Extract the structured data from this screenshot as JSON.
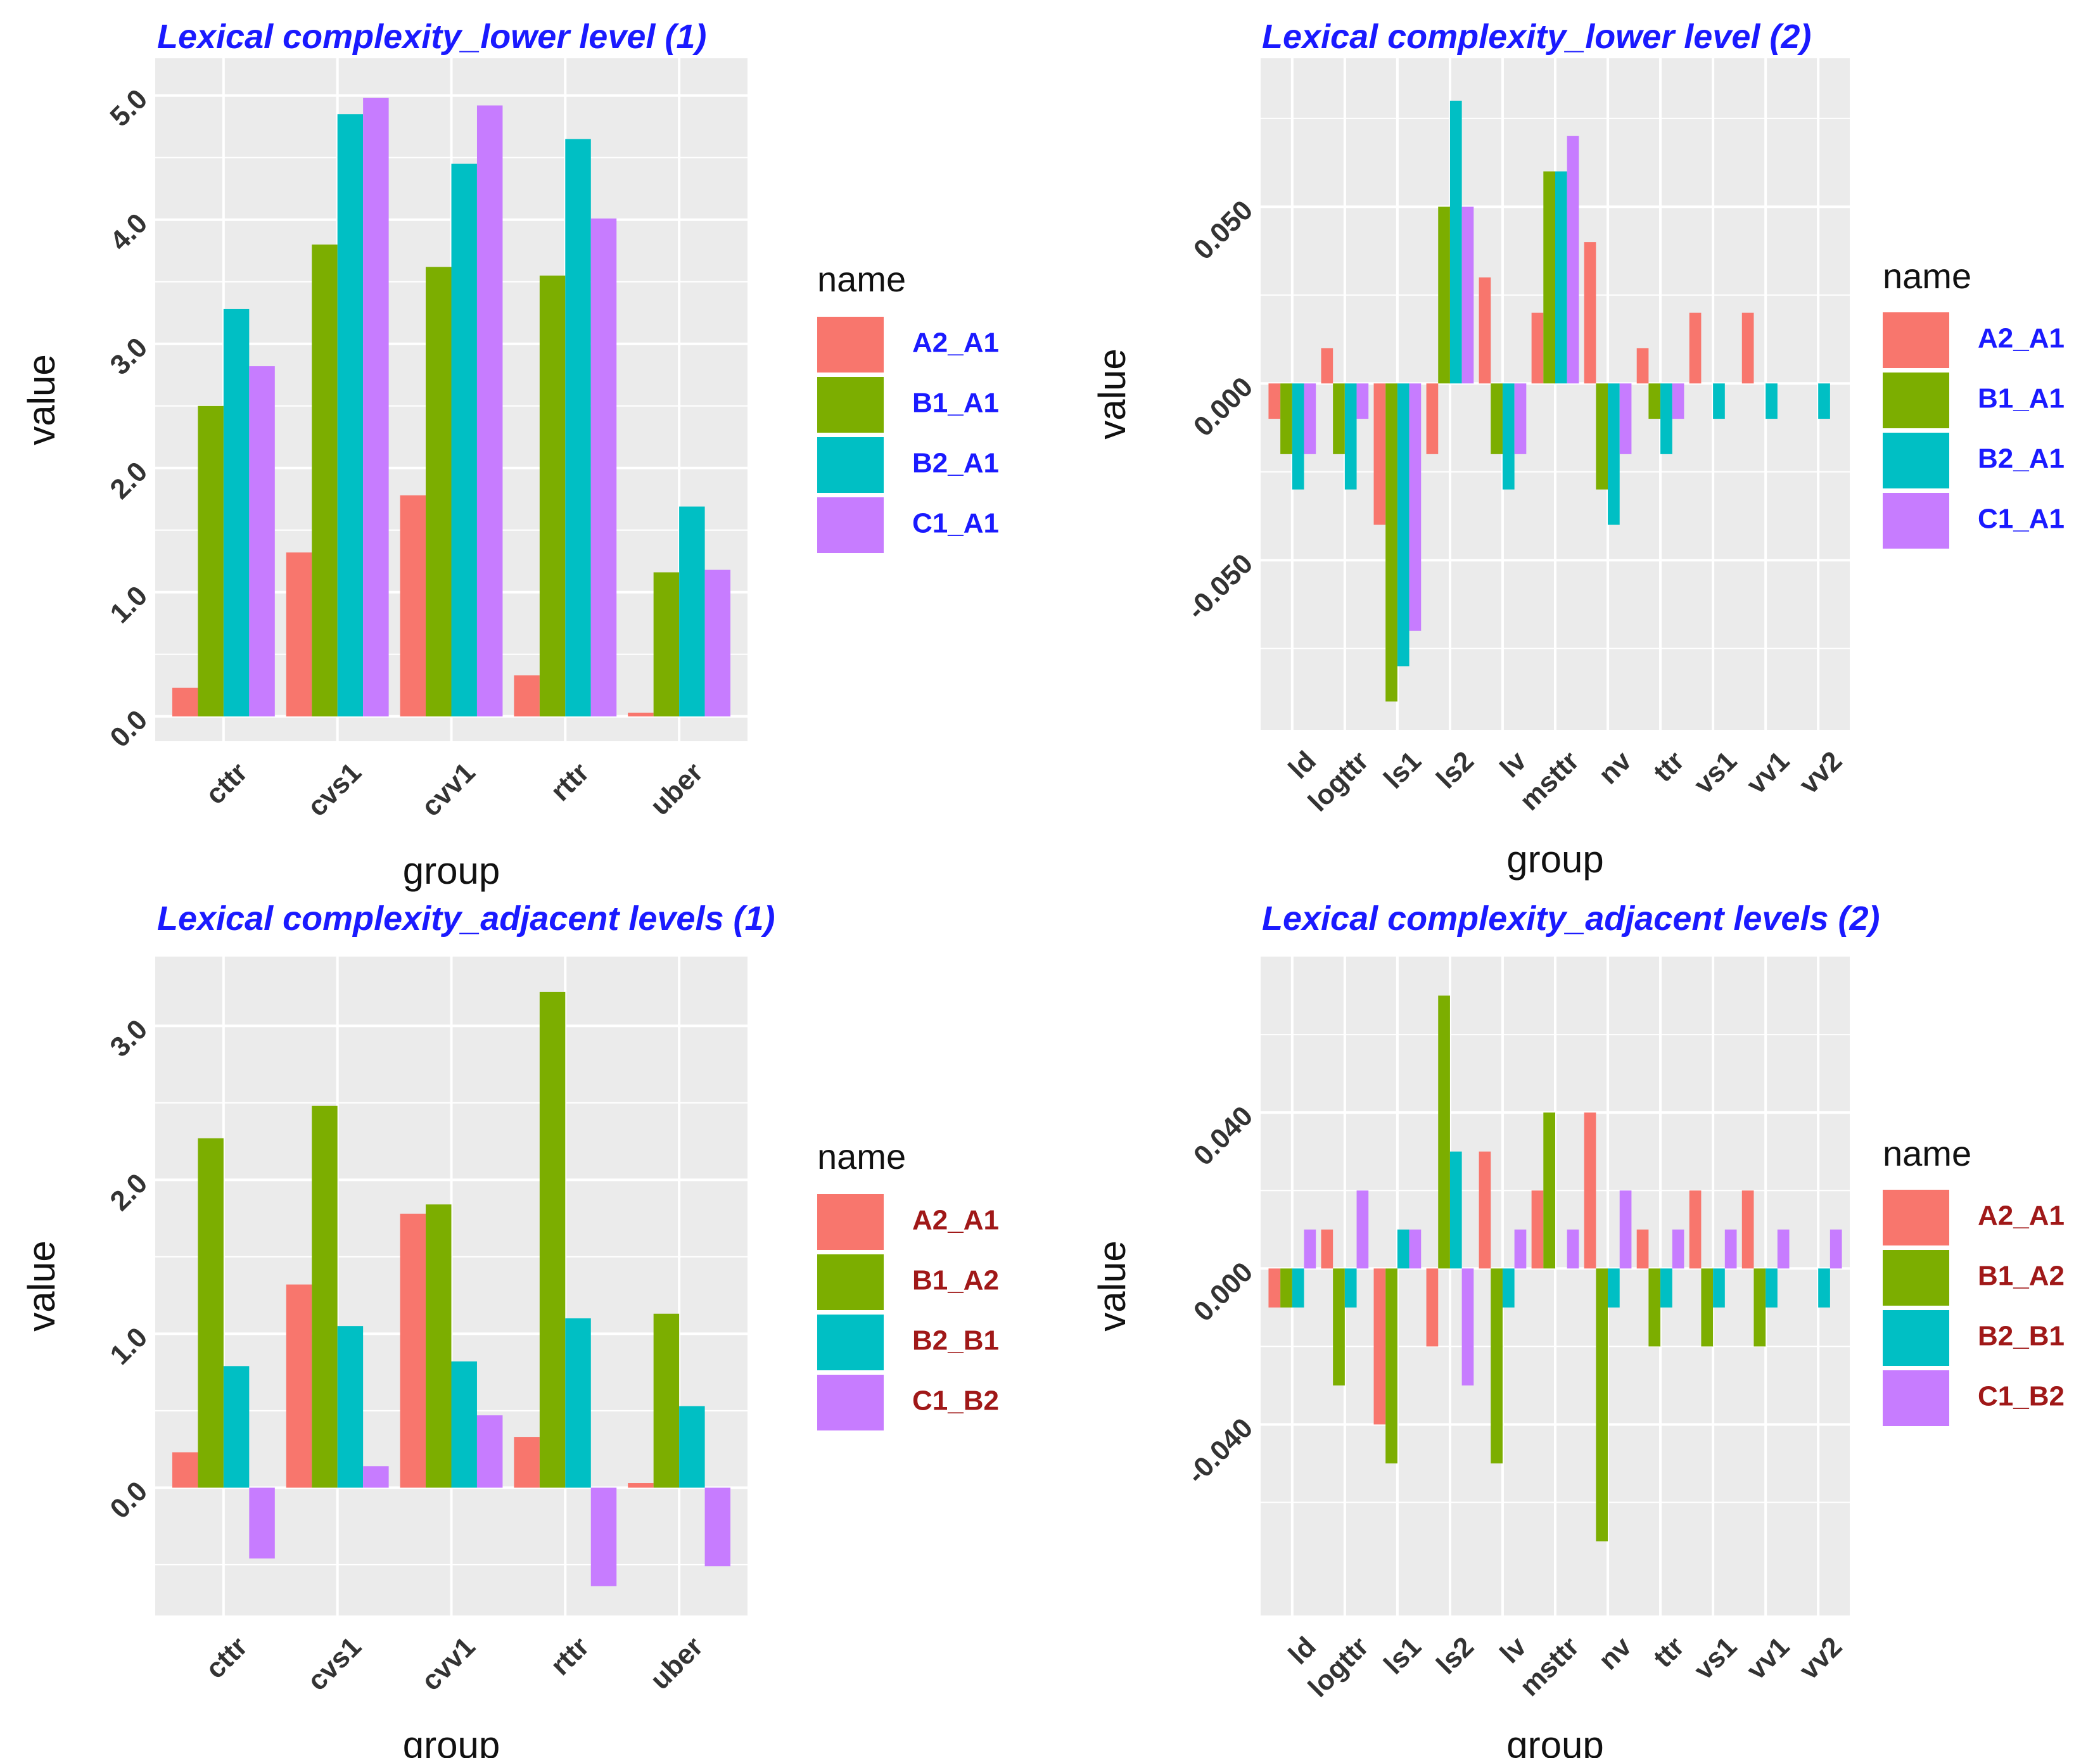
{
  "colors": {
    "A": "#F8766D",
    "B": "#7CAE00",
    "C": "#00BFC4",
    "D": "#C77CFF",
    "panel": "#EBEBEB",
    "grid": "#FFFFFF"
  },
  "chart_data": [
    {
      "type": "bar",
      "title": "Lexical complexity_lower level (1)",
      "xlabel": "group",
      "ylabel": "value",
      "categories": [
        "cttr",
        "cvs1",
        "cvv1",
        "rttr",
        "uber"
      ],
      "ylim": [
        -0.2,
        5.3
      ],
      "yticks": [
        0.0,
        1.0,
        2.0,
        3.0,
        4.0,
        5.0
      ],
      "ytick_labels": [
        "0.0",
        "1.0",
        "2.0",
        "3.0",
        "4.0",
        "5.0"
      ],
      "legend_title": "name",
      "legend_style": "blue",
      "series": [
        {
          "name": "A2_A1",
          "values": [
            0.23,
            1.32,
            1.78,
            0.33,
            0.03
          ]
        },
        {
          "name": "B1_A1",
          "values": [
            2.5,
            3.8,
            3.62,
            3.55,
            1.16
          ]
        },
        {
          "name": "B2_A1",
          "values": [
            3.28,
            4.85,
            4.45,
            4.65,
            1.69
          ]
        },
        {
          "name": "C1_A1",
          "values": [
            2.82,
            4.98,
            4.92,
            4.01,
            1.18
          ]
        }
      ]
    },
    {
      "type": "bar",
      "title": "Lexical complexity_lower level (2)",
      "xlabel": "group",
      "ylabel": "value",
      "categories": [
        "ld",
        "logttr",
        "ls1",
        "ls2",
        "lv",
        "msttr",
        "nv",
        "ttr",
        "vs1",
        "vv1",
        "vv2"
      ],
      "ylim": [
        -0.098,
        0.092
      ],
      "yticks": [
        -0.05,
        0.0,
        0.05
      ],
      "ytick_labels": [
        "-0.050",
        "0.000",
        "0.050"
      ],
      "legend_title": "name",
      "legend_style": "blue",
      "series": [
        {
          "name": "A2_A1",
          "values": [
            -0.01,
            0.01,
            -0.04,
            -0.02,
            0.03,
            0.02,
            0.04,
            0.01,
            0.02,
            0.02,
            0.0
          ]
        },
        {
          "name": "B1_A1",
          "values": [
            -0.02,
            -0.02,
            -0.09,
            0.05,
            -0.02,
            0.06,
            -0.03,
            -0.01,
            0.0,
            0.0,
            0.0
          ]
        },
        {
          "name": "B2_A1",
          "values": [
            -0.03,
            -0.03,
            -0.08,
            0.08,
            -0.03,
            0.06,
            -0.04,
            -0.02,
            -0.01,
            -0.01,
            -0.01
          ]
        },
        {
          "name": "C1_A1",
          "values": [
            -0.02,
            -0.01,
            -0.07,
            0.05,
            -0.02,
            0.07,
            -0.02,
            -0.01,
            0.0,
            0.0,
            0.0
          ]
        }
      ]
    },
    {
      "type": "bar",
      "title": "Lexical complexity_adjacent levels (1)",
      "xlabel": "group",
      "ylabel": "value",
      "categories": [
        "cttr",
        "cvs1",
        "cvv1",
        "rttr",
        "uber"
      ],
      "ylim": [
        -0.83,
        3.45
      ],
      "yticks": [
        0.0,
        1.0,
        2.0,
        3.0
      ],
      "ytick_labels": [
        "0.0",
        "1.0",
        "2.0",
        "3.0"
      ],
      "legend_title": "name",
      "legend_style": "red",
      "series": [
        {
          "name": "A2_A1",
          "values": [
            0.23,
            1.32,
            1.78,
            0.33,
            0.03
          ]
        },
        {
          "name": "B1_A2",
          "values": [
            2.27,
            2.48,
            1.84,
            3.22,
            1.13
          ]
        },
        {
          "name": "B2_B1",
          "values": [
            0.79,
            1.05,
            0.82,
            1.1,
            0.53
          ]
        },
        {
          "name": "C1_B2",
          "values": [
            -0.46,
            0.14,
            0.47,
            -0.64,
            -0.51
          ]
        }
      ]
    },
    {
      "type": "bar",
      "title": "Lexical complexity_adjacent levels (2)",
      "xlabel": "group",
      "ylabel": "value",
      "categories": [
        "ld",
        "logttr",
        "ls1",
        "ls2",
        "lv",
        "msttr",
        "nv",
        "ttr",
        "vs1",
        "vv1",
        "vv2"
      ],
      "ylim": [
        -0.089,
        0.08
      ],
      "yticks": [
        -0.04,
        0.0,
        0.04
      ],
      "ytick_labels": [
        "-0.040",
        "0.000",
        "0.040"
      ],
      "legend_title": "name",
      "legend_style": "red",
      "series": [
        {
          "name": "A2_A1",
          "values": [
            -0.01,
            0.01,
            -0.04,
            -0.02,
            0.03,
            0.02,
            0.04,
            0.01,
            0.02,
            0.02,
            0.0
          ]
        },
        {
          "name": "B1_A2",
          "values": [
            -0.01,
            -0.03,
            -0.05,
            0.07,
            -0.05,
            0.04,
            -0.07,
            -0.02,
            -0.02,
            -0.02,
            0.0
          ]
        },
        {
          "name": "B2_B1",
          "values": [
            -0.01,
            -0.01,
            0.01,
            0.03,
            -0.01,
            0.0,
            -0.01,
            -0.01,
            -0.01,
            -0.01,
            -0.01
          ]
        },
        {
          "name": "C1_B2",
          "values": [
            0.01,
            0.02,
            0.01,
            -0.03,
            0.01,
            0.01,
            0.02,
            0.01,
            0.01,
            0.01,
            0.01
          ]
        }
      ]
    }
  ]
}
